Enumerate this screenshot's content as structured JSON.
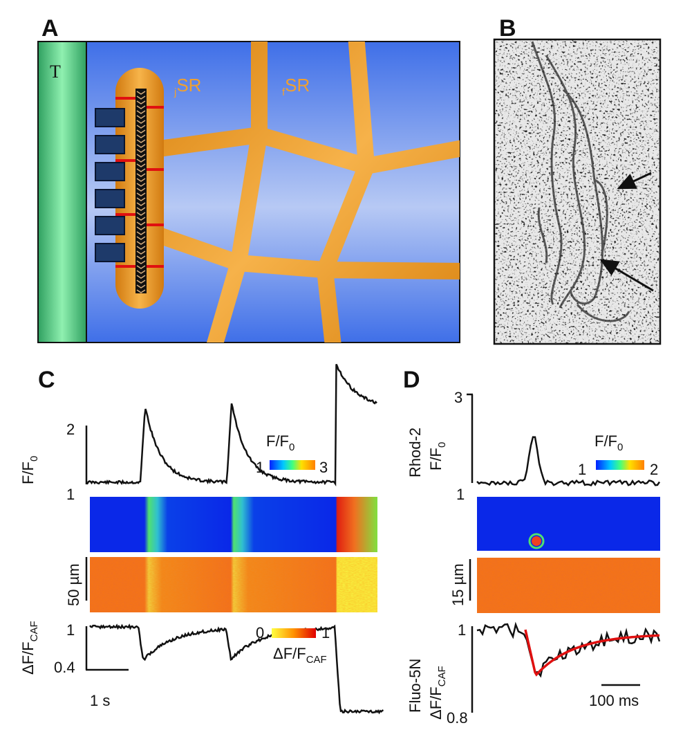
{
  "panels": {
    "A": {
      "label": "A",
      "t_tubule": "T",
      "jsr": {
        "sub": "j",
        "main": "SR"
      },
      "fsr": {
        "sub": "f",
        "main": "SR"
      }
    },
    "B": {
      "label": "B"
    },
    "C": {
      "label": "C",
      "top_axis": {
        "ticks": [
          "2",
          "1"
        ],
        "label": {
          "main": "F/F",
          "sub": "0"
        }
      },
      "colorbar_top": {
        "title": {
          "main": "F/F",
          "sub": "0"
        },
        "min": "1",
        "max": "3"
      },
      "scale_space": "50 µm",
      "bottom_axis": {
        "ticks": [
          "1",
          "0.4"
        ],
        "label": {
          "main": "ΔF/F",
          "sub": "CAF"
        }
      },
      "scale_time": "1 s",
      "colorbar_bottom": {
        "min": "0",
        "max": "1",
        "title": {
          "main": "ΔF/F",
          "sub": "CAF"
        }
      }
    },
    "D": {
      "label": "D",
      "top_axis": {
        "ticks": [
          "3",
          "1"
        ],
        "dye": "Rhod-2",
        "label": {
          "main": "F/F",
          "sub": "0"
        }
      },
      "colorbar_top": {
        "title": {
          "main": "F/F",
          "sub": "0"
        },
        "min": "1",
        "max": "2"
      },
      "scale_space": "15 µm",
      "bottom_axis": {
        "ticks": [
          "1",
          "0.8"
        ],
        "dye": "Fluo-5N",
        "label": {
          "main": "ΔF/F",
          "sub": "CAF"
        }
      },
      "scale_time": "100 ms"
    }
  }
}
